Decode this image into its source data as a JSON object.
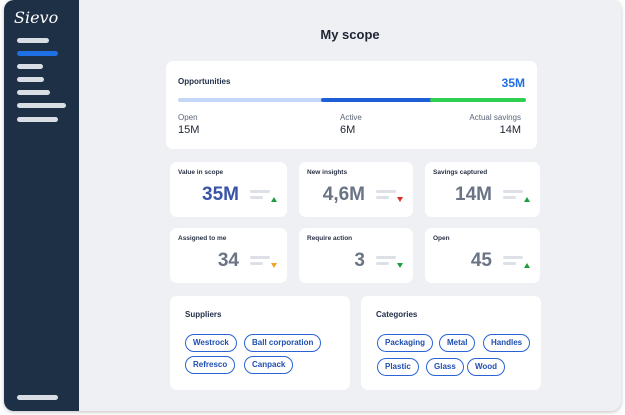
{
  "app": {
    "logo_text": "Sievo"
  },
  "page": {
    "title": "My scope"
  },
  "opportunities": {
    "title": "Opportunities",
    "total": "35M",
    "segments": [
      {
        "label": "Open",
        "value": "15M"
      },
      {
        "label": "Active",
        "value": "6M"
      },
      {
        "label": "Actual savings",
        "value": "14M"
      }
    ]
  },
  "kpis": [
    {
      "title": "Value in scope",
      "value": "35M",
      "trend": "up"
    },
    {
      "title": "New insights",
      "value": "4,6M",
      "trend": "down"
    },
    {
      "title": "Savings captured",
      "value": "14M",
      "trend": "up"
    },
    {
      "title": "Assigned to me",
      "value": "34",
      "trend": "down"
    },
    {
      "title": "Require action",
      "value": "3",
      "trend": "down"
    },
    {
      "title": "Open",
      "value": "45",
      "trend": "up"
    }
  ],
  "colors": {
    "sidebar": "#1d3046",
    "accent": "#1f6fe5",
    "savings": "#2fcf52",
    "up": "#1e9e3c",
    "down_red": "#e02b2b",
    "down_orange": "#f2a324"
  },
  "suppliers": {
    "title": "Suppliers",
    "tags": [
      "Westrock",
      "Ball corporation",
      "Refresco",
      "Canpack"
    ]
  },
  "categories": {
    "title": "Categories",
    "tags": [
      "Packaging",
      "Metal",
      "Handles",
      "Plastic",
      "Glass",
      "Wood"
    ]
  }
}
